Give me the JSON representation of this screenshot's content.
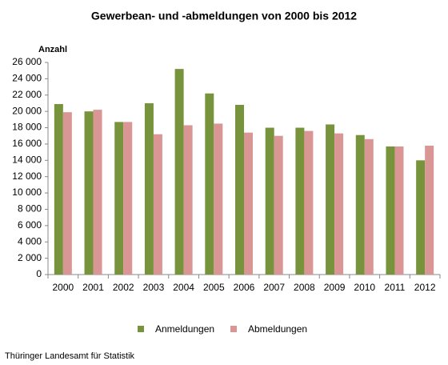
{
  "chart_data": {
    "type": "bar",
    "title": "Gewerbean- und -abmeldungen von 2000 bis 2012",
    "y_label": "Anzahl",
    "source": "Thüringer Landesamt für Statistik",
    "categories": [
      "2000",
      "2001",
      "2002",
      "2003",
      "2004",
      "2005",
      "2006",
      "2007",
      "2008",
      "2009",
      "2010",
      "2011",
      "2012"
    ],
    "series": [
      {
        "name": "Anmeldungen",
        "color": "#77933c",
        "values": [
          20900,
          20000,
          18700,
          21000,
          25200,
          22200,
          20800,
          18000,
          18000,
          18400,
          17100,
          15700,
          14000
        ]
      },
      {
        "name": "Abmeldungen",
        "color": "#d99694",
        "values": [
          19900,
          20200,
          18700,
          17200,
          18300,
          18500,
          17400,
          17000,
          17600,
          17300,
          16600,
          15700,
          15800
        ]
      }
    ],
    "ylim": [
      0,
      26000
    ],
    "yticks": [
      0,
      {
        "value": 2000,
        "label": "2 000"
      },
      {
        "value": 4000,
        "label": "4 000"
      },
      {
        "value": 6000,
        "label": "6 000"
      },
      {
        "value": 8000,
        "label": "8 000"
      },
      {
        "value": 10000,
        "label": "10 000"
      },
      {
        "value": 12000,
        "label": "12 000"
      },
      {
        "value": 14000,
        "label": "14 000"
      },
      {
        "value": 16000,
        "label": "16 000"
      },
      {
        "value": 18000,
        "label": "18 000"
      },
      {
        "value": 20000,
        "label": "20 000"
      },
      {
        "value": 22000,
        "label": "22 000"
      },
      {
        "value": 24000,
        "label": "24 000"
      },
      {
        "value": 26000,
        "label": "26 000"
      }
    ],
    "legend": "bottom"
  }
}
